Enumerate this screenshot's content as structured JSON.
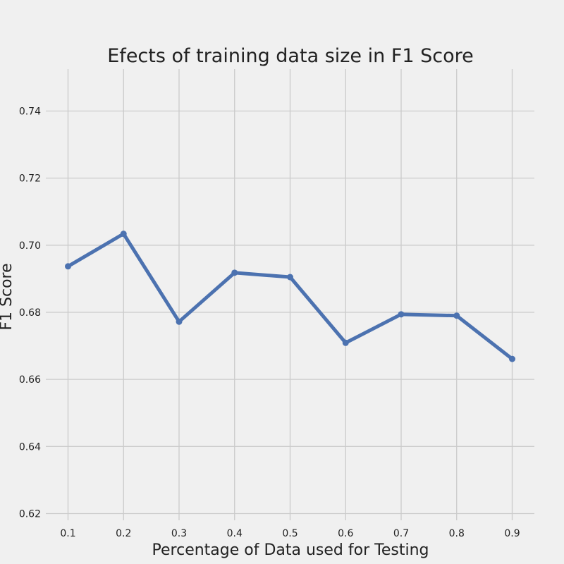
{
  "chart_data": {
    "type": "line",
    "title": "Efects of training data size in F1 Score",
    "xlabel": "Percentage of Data used for Testing",
    "ylabel": "F1 Score",
    "x": [
      0.1,
      0.2,
      0.3,
      0.4,
      0.5,
      0.6,
      0.7,
      0.8,
      0.9
    ],
    "series": [
      {
        "values": [
          0.6937,
          0.7034,
          0.6772,
          0.6918,
          0.6905,
          0.6709,
          0.6794,
          0.679,
          0.6661
        ]
      }
    ],
    "x_ticks": [
      "0.1",
      "0.2",
      "0.3",
      "0.4",
      "0.5",
      "0.6",
      "0.7",
      "0.8",
      "0.9"
    ],
    "y_ticks": [
      "0.62",
      "0.64",
      "0.66",
      "0.68",
      "0.70",
      "0.72",
      "0.74"
    ],
    "xlim": [
      0.06,
      0.94
    ],
    "ylim": [
      0.618,
      0.7525
    ],
    "grid": true,
    "colors": {
      "line": "#4c72b0",
      "grid": "#cbcbcb",
      "background": "#f0f0f0",
      "text": "#222222"
    }
  }
}
